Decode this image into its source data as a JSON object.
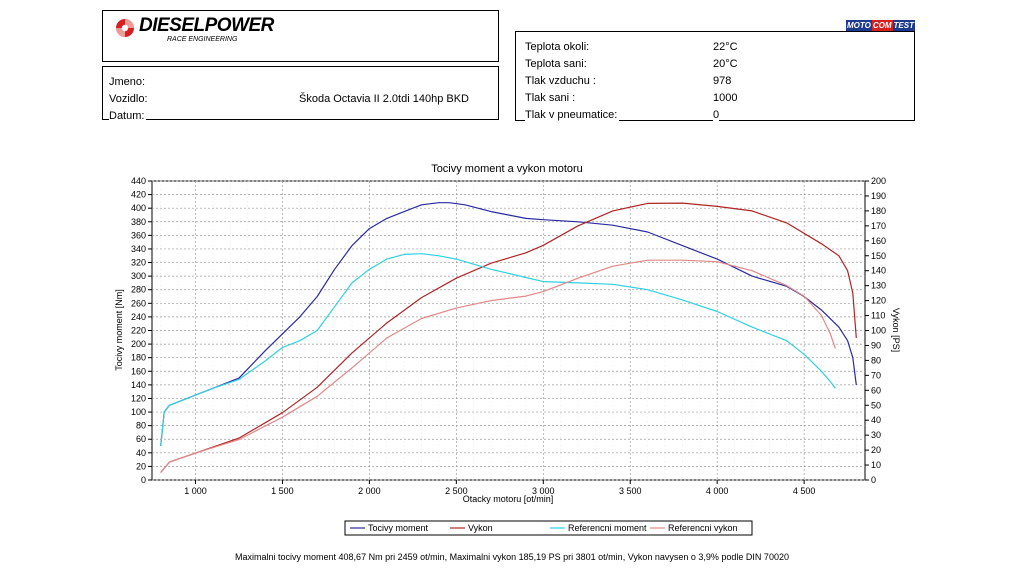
{
  "header": {
    "brand": "DIESELPOWER",
    "brand_sub": "RACE ENGINEERING",
    "tester_logo": {
      "part1": "MOTO",
      "part2": "COM",
      "part3": "TEST"
    }
  },
  "info": {
    "name_label": "Jmeno:",
    "name_value": "",
    "vehicle_label": "Vozidlo:",
    "vehicle_value": "Škoda Octavia II 2.0tdi 140hp BKD",
    "date_label": "Datum:",
    "date_value": ""
  },
  "conditions": [
    {
      "label": "Teplota okoli:",
      "value": "22°C"
    },
    {
      "label": "Teplota sani:",
      "value": "20°C"
    },
    {
      "label": "Tlak vzduchu :",
      "value": "978"
    },
    {
      "label": "Tlak sani :",
      "value": "1000"
    },
    {
      "label": "Tlak v pneumatice:",
      "value": "0"
    }
  ],
  "colors": {
    "torque": "#2a2aa0",
    "power": "#b02424",
    "ref_torque": "#2fd0e0",
    "ref_power": "#e08888",
    "brand_red": "#d62020"
  },
  "chart_data": {
    "type": "line",
    "title": "Tocivy moment a vykon motoru",
    "xlabel": "Otacky motoru [ot/min]",
    "ylabel": "Tocivy moment [Nm]",
    "y2label": "Vykon [PS]",
    "xlim": [
      750,
      4850
    ],
    "ylim": [
      0,
      440
    ],
    "y2lim": [
      0,
      200
    ],
    "x_ticks": [
      1000,
      1500,
      2000,
      2500,
      3000,
      3500,
      4000,
      4500
    ],
    "x_tick_labels": [
      "1 000",
      "1 500",
      "2 000",
      "2 500",
      "3 000",
      "3 500",
      "4 000",
      "4 500"
    ],
    "y_ticks": [
      0,
      20,
      40,
      60,
      80,
      100,
      120,
      140,
      160,
      180,
      200,
      220,
      240,
      260,
      280,
      300,
      320,
      340,
      360,
      380,
      400,
      420,
      440
    ],
    "y2_ticks": [
      0,
      10,
      20,
      30,
      40,
      50,
      60,
      70,
      80,
      90,
      100,
      110,
      120,
      130,
      140,
      150,
      160,
      170,
      180,
      190,
      200
    ],
    "grid": true,
    "legend_position": "bottom",
    "series": [
      {
        "name": "Tocivy moment",
        "axis": "left",
        "color_key": "torque",
        "x": [
          800,
          820,
          850,
          900,
          1000,
          1100,
          1250,
          1400,
          1500,
          1600,
          1700,
          1800,
          1900,
          2000,
          2100,
          2200,
          2300,
          2400,
          2459,
          2550,
          2700,
          2800,
          2900,
          3000,
          3200,
          3400,
          3600,
          3800,
          4000,
          4200,
          4400,
          4500,
          4600,
          4700,
          4750,
          4780,
          4800
        ],
        "y": [
          50,
          100,
          110,
          115,
          125,
          135,
          150,
          190,
          215,
          240,
          270,
          310,
          345,
          370,
          385,
          395,
          405,
          408,
          408,
          405,
          395,
          390,
          385,
          383,
          380,
          375,
          365,
          345,
          325,
          300,
          285,
          270,
          250,
          225,
          205,
          180,
          140
        ]
      },
      {
        "name": "Vykon",
        "axis": "right",
        "color_key": "power",
        "x": [
          800,
          850,
          1000,
          1250,
          1500,
          1700,
          1900,
          2100,
          2300,
          2500,
          2700,
          2900,
          3000,
          3200,
          3400,
          3600,
          3801,
          4000,
          4200,
          4400,
          4600,
          4700,
          4750,
          4780,
          4800
        ],
        "y": [
          5,
          12,
          18,
          28,
          45,
          62,
          85,
          105,
          122,
          135,
          145,
          152,
          157,
          170,
          180,
          185,
          185.19,
          183,
          180,
          172,
          158,
          150,
          140,
          125,
          95
        ]
      },
      {
        "name": "Referencni moment",
        "axis": "left",
        "color_key": "ref_torque",
        "x": [
          800,
          820,
          850,
          900,
          1000,
          1100,
          1250,
          1400,
          1500,
          1600,
          1700,
          1800,
          1900,
          2000,
          2100,
          2200,
          2300,
          2400,
          2500,
          2700,
          2900,
          3000,
          3200,
          3400,
          3600,
          3800,
          4000,
          4200,
          4400,
          4500,
          4600,
          4650,
          4680
        ],
        "y": [
          50,
          100,
          110,
          115,
          125,
          135,
          148,
          175,
          195,
          205,
          220,
          255,
          290,
          310,
          325,
          332,
          333,
          330,
          325,
          310,
          298,
          292,
          290,
          288,
          280,
          265,
          248,
          225,
          205,
          185,
          160,
          145,
          135
        ]
      },
      {
        "name": "Referencni vykon",
        "axis": "right",
        "color_key": "ref_power",
        "x": [
          800,
          850,
          1000,
          1250,
          1500,
          1700,
          1900,
          2100,
          2300,
          2500,
          2700,
          2900,
          3000,
          3200,
          3400,
          3600,
          3800,
          4000,
          4200,
          4400,
          4500,
          4600,
          4650,
          4680
        ],
        "y": [
          5,
          12,
          18,
          27,
          42,
          56,
          75,
          95,
          108,
          115,
          120,
          123,
          126,
          135,
          143,
          147,
          147,
          146,
          140,
          130,
          123,
          110,
          98,
          88
        ]
      }
    ]
  },
  "footer": {
    "text": "Maximalni tocivy moment 408,67 Nm pri 2459 ot/min,  Maximalni vykon 185,19 PS pri 3801 ot/min,  Vykon navysen o 3,9% podle DIN 70020"
  }
}
